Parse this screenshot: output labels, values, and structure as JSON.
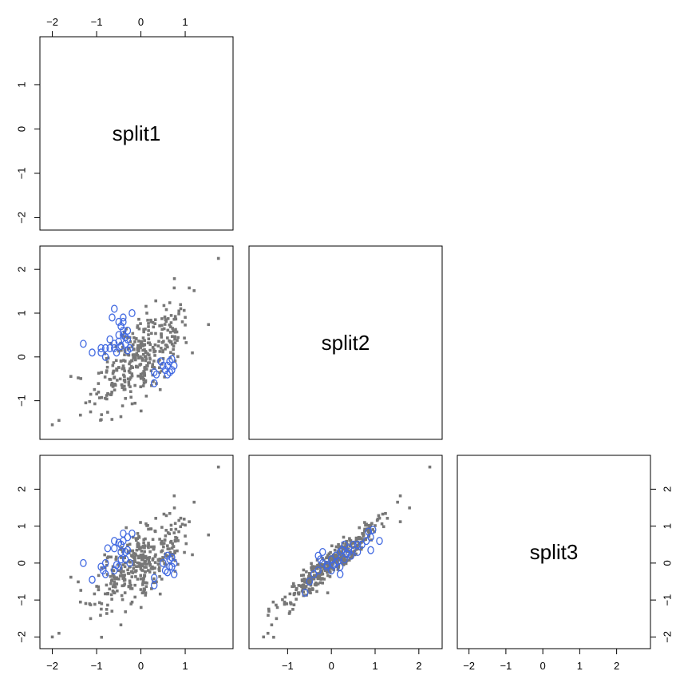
{
  "chart_data": {
    "type": "scatter",
    "kind": "pairs-lower-triangle",
    "variables": [
      "split1",
      "split2",
      "split3"
    ],
    "axes": {
      "split1": {
        "range": [
          -2.1,
          1.9
        ],
        "ticks": [
          -2,
          -1,
          0,
          1
        ]
      },
      "split2": {
        "range": [
          -1.7,
          2.35
        ],
        "ticks": [
          -1,
          0,
          1,
          2
        ]
      },
      "split3": {
        "range": [
          -2.1,
          2.7
        ],
        "ticks": [
          -2,
          -1,
          0,
          1,
          2
        ]
      }
    },
    "tick_labels": {
      "top_split1": [
        "−2",
        "−1",
        "0",
        "1"
      ],
      "left_split1": [
        "−2",
        "−1",
        "0",
        "1"
      ],
      "left_split2": [
        "−1",
        "0",
        "1",
        "2"
      ],
      "left_split3": [
        "−2",
        "−1",
        "0",
        "1",
        "2"
      ],
      "bottom_split1": [
        "−2",
        "−1",
        "0",
        "1"
      ],
      "bottom_split2": [
        "−1",
        "0",
        "1",
        "2"
      ],
      "bottom_split3": [
        "−2",
        "−1",
        "0",
        "1",
        "2"
      ],
      "right_split3": [
        "−2",
        "−1",
        "0",
        "1",
        "2"
      ]
    },
    "groups": [
      {
        "marker": "square",
        "color": "#777777",
        "count": 360
      },
      {
        "marker": "open-circle",
        "color": "#4169e1",
        "count": 52
      }
    ],
    "series": [
      {
        "pair": [
          "split1",
          "split2"
        ],
        "highlighted": [
          [
            -1.3,
            0.3
          ],
          [
            -1.1,
            0.1
          ],
          [
            -0.9,
            0.1
          ],
          [
            -0.8,
            0.2
          ],
          [
            -0.7,
            0.4
          ],
          [
            -0.6,
            1.1
          ],
          [
            -0.65,
            0.9
          ],
          [
            -0.5,
            0.8
          ],
          [
            -0.4,
            0.9
          ],
          [
            -0.45,
            0.7
          ],
          [
            -0.4,
            0.6
          ],
          [
            -0.5,
            0.5
          ],
          [
            -0.3,
            0.6
          ],
          [
            -0.2,
            1.0
          ],
          [
            -0.3,
            0.4
          ],
          [
            -0.6,
            0.3
          ],
          [
            -0.55,
            0.1
          ],
          [
            -0.7,
            0.2
          ],
          [
            -0.8,
            0.0
          ],
          [
            -0.9,
            0.2
          ],
          [
            -0.35,
            0.3
          ],
          [
            0.3,
            -0.6
          ],
          [
            0.35,
            -0.4
          ],
          [
            0.5,
            -0.2
          ],
          [
            0.55,
            -0.3
          ],
          [
            0.6,
            -0.4
          ],
          [
            0.65,
            -0.1
          ],
          [
            0.7,
            -0.3
          ],
          [
            0.75,
            -0.2
          ],
          [
            0.6,
            -0.2
          ],
          [
            0.45,
            -0.1
          ],
          [
            0.3,
            -0.35
          ],
          [
            -0.45,
            0.25
          ],
          [
            -0.5,
            0.35
          ],
          [
            -0.25,
            0.2
          ],
          [
            -0.6,
            0.2
          ],
          [
            0.7,
            -0.05
          ],
          [
            0.65,
            -0.35
          ],
          [
            -0.4,
            0.8
          ],
          [
            -0.4,
            0.5
          ],
          [
            -0.3,
            0.15
          ],
          [
            -0.35,
            0.45
          ]
        ]
      },
      {
        "pair": [
          "split1",
          "split3"
        ],
        "highlighted": [
          [
            -1.3,
            0.0
          ],
          [
            -1.1,
            -0.45
          ],
          [
            -0.9,
            -0.1
          ],
          [
            -0.8,
            -0.3
          ],
          [
            -0.75,
            0.4
          ],
          [
            -0.6,
            0.6
          ],
          [
            -0.6,
            0.4
          ],
          [
            -0.5,
            0.55
          ],
          [
            -0.45,
            0.5
          ],
          [
            -0.4,
            0.8
          ],
          [
            -0.35,
            0.3
          ],
          [
            -0.3,
            0.7
          ],
          [
            -0.2,
            0.8
          ],
          [
            -0.25,
            0.0
          ],
          [
            -0.5,
            -0.1
          ],
          [
            -0.6,
            -0.2
          ],
          [
            -0.8,
            0.0
          ],
          [
            -0.85,
            -0.2
          ],
          [
            0.3,
            -0.6
          ],
          [
            0.3,
            -0.4
          ],
          [
            0.5,
            0.0
          ],
          [
            0.55,
            -0.2
          ],
          [
            0.6,
            0.2
          ],
          [
            0.65,
            0.1
          ],
          [
            0.7,
            -0.1
          ],
          [
            0.75,
            0.0
          ],
          [
            0.75,
            -0.3
          ],
          [
            0.6,
            -0.25
          ],
          [
            -0.45,
            0.3
          ],
          [
            -0.45,
            0.1
          ],
          [
            -0.35,
            0.1
          ],
          [
            0.65,
            -0.1
          ],
          [
            -0.55,
            -0.05
          ],
          [
            -0.4,
            0.6
          ],
          [
            0.7,
            0.15
          ],
          [
            -0.3,
            0.35
          ]
        ]
      },
      {
        "pair": [
          "split2",
          "split3"
        ],
        "highlighted": [
          [
            -0.6,
            -0.8
          ],
          [
            -0.5,
            -0.5
          ],
          [
            -0.4,
            -0.3
          ],
          [
            -0.3,
            -0.2
          ],
          [
            -0.3,
            0.2
          ],
          [
            -0.2,
            0.0
          ],
          [
            -0.2,
            0.3
          ],
          [
            -0.1,
            -0.1
          ],
          [
            0.0,
            -0.2
          ],
          [
            0.0,
            0.1
          ],
          [
            0.1,
            0.0
          ],
          [
            0.1,
            0.2
          ],
          [
            0.2,
            0.3
          ],
          [
            0.2,
            -0.3
          ],
          [
            0.3,
            0.1
          ],
          [
            0.3,
            0.5
          ],
          [
            0.4,
            0.3
          ],
          [
            0.4,
            0.4
          ],
          [
            0.5,
            0.5
          ],
          [
            0.6,
            0.5
          ],
          [
            0.6,
            0.3
          ],
          [
            0.7,
            0.5
          ],
          [
            0.8,
            0.6
          ],
          [
            0.9,
            0.7
          ],
          [
            0.95,
            0.9
          ],
          [
            0.85,
            0.85
          ],
          [
            1.1,
            0.6
          ],
          [
            0.9,
            0.35
          ],
          [
            -0.25,
            0.1
          ],
          [
            0.05,
            -0.05
          ],
          [
            0.2,
            -0.1
          ],
          [
            0.15,
            0.05
          ],
          [
            0.35,
            0.25
          ],
          [
            -0.1,
            -0.05
          ],
          [
            0.45,
            0.2
          ],
          [
            0.25,
            0.35
          ]
        ]
      }
    ]
  }
}
